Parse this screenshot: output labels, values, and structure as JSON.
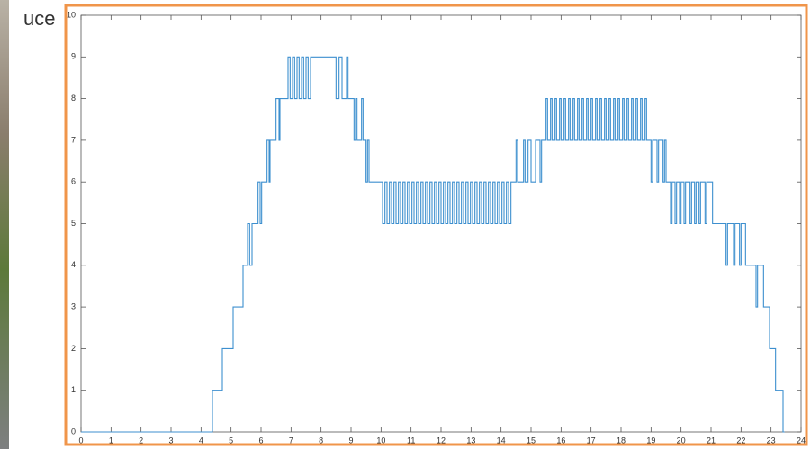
{
  "slide_fragment": "uce",
  "chart_data": {
    "type": "line",
    "drawstyle": "steps-post",
    "color": "#3d8fcf",
    "xlim": [
      0,
      24
    ],
    "xticks": [
      0,
      1,
      2,
      3,
      4,
      5,
      6,
      7,
      8,
      9,
      10,
      11,
      12,
      13,
      14,
      15,
      16,
      17,
      18,
      19,
      20,
      21,
      22,
      23,
      24
    ],
    "ylim": [
      0,
      10
    ],
    "yticks": [
      0,
      1,
      2,
      3,
      4,
      5,
      6,
      7,
      8,
      9,
      10
    ],
    "x": [
      0,
      4.38,
      4.71,
      5.07,
      5.4,
      5.55,
      5.62,
      5.7,
      5.9,
      5.97,
      6.02,
      6.2,
      6.27,
      6.3,
      6.5,
      6.6,
      6.63,
      6.9,
      6.97,
      7.05,
      7.12,
      7.2,
      7.27,
      7.35,
      7.42,
      7.5,
      7.57,
      7.65,
      8.5,
      8.6,
      8.7,
      8.85,
      8.9,
      9.1,
      9.15,
      9.2,
      9.35,
      9.4,
      9.5,
      9.55,
      9.6,
      10.05,
      10.13,
      10.2,
      10.28,
      10.35,
      10.43,
      10.5,
      10.58,
      10.65,
      10.73,
      10.8,
      10.88,
      10.95,
      11.03,
      11.1,
      11.18,
      11.25,
      11.33,
      11.4,
      11.48,
      11.55,
      11.63,
      11.7,
      11.78,
      11.85,
      11.93,
      12.0,
      12.08,
      12.15,
      12.23,
      12.3,
      12.38,
      12.45,
      12.53,
      12.6,
      12.68,
      12.75,
      12.83,
      12.9,
      12.98,
      13.05,
      13.13,
      13.2,
      13.28,
      13.35,
      13.43,
      13.5,
      13.58,
      13.65,
      13.73,
      13.8,
      13.88,
      13.95,
      14.03,
      14.1,
      14.18,
      14.25,
      14.33,
      14.5,
      14.55,
      14.75,
      14.8,
      14.9,
      15.0,
      15.15,
      15.3,
      15.35,
      15.5,
      15.55,
      15.65,
      15.7,
      15.8,
      15.85,
      15.95,
      16.0,
      16.1,
      16.15,
      16.25,
      16.3,
      16.4,
      16.45,
      16.55,
      16.6,
      16.7,
      16.75,
      16.85,
      16.9,
      17.0,
      17.05,
      17.15,
      17.2,
      17.3,
      17.35,
      17.45,
      17.5,
      17.6,
      17.65,
      17.75,
      17.8,
      17.9,
      17.95,
      18.05,
      18.1,
      18.2,
      18.25,
      18.35,
      18.4,
      18.5,
      18.55,
      18.65,
      18.7,
      18.8,
      18.85,
      19.0,
      19.05,
      19.2,
      19.25,
      19.4,
      19.45,
      19.5,
      19.65,
      19.7,
      19.8,
      19.85,
      19.95,
      20.0,
      20.1,
      20.15,
      20.3,
      20.35,
      20.45,
      20.5,
      20.6,
      20.65,
      20.8,
      20.85,
      21.05,
      21.5,
      21.55,
      21.75,
      21.8,
      21.95,
      22.0,
      22.15,
      22.5,
      22.55,
      22.75,
      22.95,
      23.15,
      23.4,
      23.45
    ],
    "values": [
      0,
      1,
      2,
      3,
      4,
      5,
      4,
      5,
      6,
      5,
      6,
      7,
      6,
      7,
      8,
      7,
      8,
      9,
      8,
      9,
      8,
      9,
      8,
      9,
      8,
      9,
      8,
      9,
      8,
      9,
      8,
      9,
      8,
      7,
      8,
      7,
      8,
      7,
      6,
      7,
      6,
      5,
      6,
      5,
      6,
      5,
      6,
      5,
      6,
      5,
      6,
      5,
      6,
      5,
      6,
      5,
      6,
      5,
      6,
      5,
      6,
      5,
      6,
      5,
      6,
      5,
      6,
      5,
      6,
      5,
      6,
      5,
      6,
      5,
      6,
      5,
      6,
      5,
      6,
      5,
      6,
      5,
      6,
      5,
      6,
      5,
      6,
      5,
      6,
      5,
      6,
      5,
      6,
      5,
      6,
      5,
      6,
      5,
      6,
      7,
      6,
      7,
      6,
      7,
      6,
      7,
      6,
      7,
      8,
      7,
      8,
      7,
      8,
      7,
      8,
      7,
      8,
      7,
      8,
      7,
      8,
      7,
      8,
      7,
      8,
      7,
      8,
      7,
      8,
      7,
      8,
      7,
      8,
      7,
      8,
      7,
      8,
      7,
      8,
      7,
      8,
      7,
      8,
      7,
      8,
      7,
      8,
      7,
      8,
      7,
      8,
      7,
      8,
      7,
      6,
      7,
      6,
      7,
      6,
      7,
      6,
      5,
      6,
      5,
      6,
      5,
      6,
      5,
      6,
      5,
      6,
      5,
      6,
      5,
      6,
      5,
      6,
      5,
      4,
      5,
      4,
      5,
      4,
      5,
      4,
      3,
      4,
      3,
      2,
      1,
      0,
      0
    ]
  }
}
